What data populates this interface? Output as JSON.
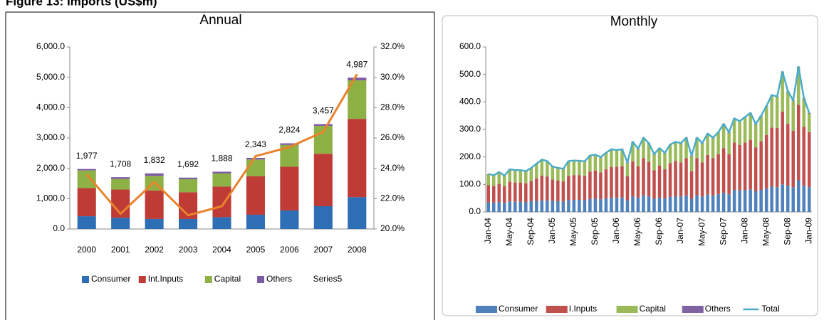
{
  "figure_title": "Figure 13: Imports (US$m)",
  "chart_data": [
    {
      "type": "bar",
      "stacked": true,
      "title": "Annual",
      "categories": [
        "2000",
        "2001",
        "2002",
        "2003",
        "2004",
        "2005",
        "2006",
        "2007",
        "2008"
      ],
      "series": [
        {
          "name": "Consumer",
          "color": "#2e6eb5",
          "type": "bar",
          "values": [
            420,
            370,
            330,
            330,
            390,
            470,
            610,
            750,
            1050
          ]
        },
        {
          "name": "Int.Inputs",
          "color": "#bf3b36",
          "type": "bar",
          "values": [
            930,
            930,
            940,
            880,
            1010,
            1270,
            1440,
            1730,
            2580
          ]
        },
        {
          "name": "Capital",
          "color": "#8db144",
          "type": "bar",
          "values": [
            580,
            350,
            480,
            430,
            430,
            550,
            720,
            920,
            1270
          ]
        },
        {
          "name": "Others",
          "color": "#7b5aa6",
          "type": "bar",
          "values": [
            47,
            58,
            82,
            52,
            58,
            53,
            54,
            57,
            87
          ]
        },
        {
          "name": "Series5",
          "color": "#e8822c",
          "type": "line",
          "axis": "y2",
          "values": [
            23.6,
            21.0,
            23.1,
            20.9,
            21.5,
            24.8,
            25.4,
            26.4,
            30.2
          ]
        }
      ],
      "data_labels": [
        "1,977",
        "1,708",
        "1,832",
        "1,692",
        "1,888",
        "2,343",
        "2,824",
        "3,457",
        "4,987"
      ],
      "ylim": [
        0,
        6000
      ],
      "yticks": [
        {
          "value": 0,
          "label": "0.0"
        },
        {
          "value": 1000,
          "label": "1,000.0"
        },
        {
          "value": 2000,
          "label": "2,000.0"
        },
        {
          "value": 3000,
          "label": "3,000.0"
        },
        {
          "value": 4000,
          "label": "4,000.0"
        },
        {
          "value": 5000,
          "label": "5,000.0"
        },
        {
          "value": 6000,
          "label": "6,000.0"
        }
      ],
      "y2lim": [
        20,
        32
      ],
      "y2ticks": [
        {
          "value": 20,
          "label": "20.0%"
        },
        {
          "value": 22,
          "label": "22.0%"
        },
        {
          "value": 24,
          "label": "24.0%"
        },
        {
          "value": 26,
          "label": "26.0%"
        },
        {
          "value": 28,
          "label": "28.0%"
        },
        {
          "value": 30,
          "label": "30.0%"
        },
        {
          "value": 32,
          "label": "32.0%"
        }
      ],
      "grid": false,
      "legend": "bottom",
      "legend_line_swatch": false,
      "rotate_x_labels": false
    },
    {
      "type": "bar",
      "stacked": true,
      "title": "Monthly",
      "categories": [
        "Jan-04",
        null,
        null,
        null,
        "May-04",
        null,
        null,
        null,
        "Sep-04",
        null,
        null,
        null,
        "Jan-05",
        null,
        null,
        null,
        "May-05",
        null,
        null,
        null,
        "Sep-05",
        null,
        null,
        null,
        "Jan-06",
        null,
        null,
        null,
        "May-06",
        null,
        null,
        null,
        "Sep-06",
        null,
        null,
        null,
        "Jan-07",
        null,
        null,
        null,
        "May-07",
        null,
        null,
        null,
        "Sep-07",
        null,
        null,
        null,
        "Jan-08",
        null,
        null,
        null,
        "May-08",
        null,
        null,
        null,
        "Sep-08",
        null,
        null,
        null,
        "Jan-09"
      ],
      "series": [
        {
          "name": "Consumer",
          "color": "#4f81bd",
          "type": "bar",
          "values": [
            35,
            34,
            36,
            33,
            38,
            37,
            37,
            36,
            39,
            40,
            42,
            41,
            40,
            39,
            38,
            43,
            44,
            44,
            43,
            47,
            48,
            46,
            49,
            51,
            52,
            52,
            42,
            56,
            52,
            60,
            56,
            48,
            52,
            49,
            55,
            57,
            56,
            60,
            48,
            60,
            56,
            63,
            60,
            64,
            70,
            64,
            80,
            78,
            80,
            82,
            75,
            80,
            85,
            92,
            90,
            100,
            95,
            90,
            115,
            95,
            90
          ]
        },
        {
          "name": "I.Inputs",
          "color": "#c0504d",
          "type": "bar",
          "values": [
            62,
            60,
            66,
            60,
            72,
            70,
            70,
            68,
            74,
            82,
            90,
            88,
            78,
            75,
            73,
            88,
            90,
            90,
            88,
            100,
            102,
            98,
            106,
            112,
            112,
            114,
            88,
            128,
            114,
            136,
            126,
            104,
            116,
            106,
            122,
            128,
            124,
            136,
            100,
            136,
            124,
            144,
            136,
            146,
            162,
            146,
            172,
            166,
            172,
            180,
            160,
            176,
            195,
            215,
            215,
            265,
            225,
            205,
            275,
            215,
            200
          ]
        },
        {
          "name": "Capital",
          "color": "#9bbb59",
          "type": "bar",
          "values": [
            39,
            37,
            41,
            37,
            43,
            43,
            43,
            42,
            45,
            51,
            56,
            54,
            45,
            44,
            44,
            52,
            51,
            50,
            51,
            56,
            56,
            54,
            58,
            63,
            59,
            60,
            48,
            69,
            62,
            72,
            66,
            56,
            62,
            58,
            66,
            68,
            68,
            72,
            55,
            72,
            68,
            76,
            72,
            78,
            86,
            78,
            86,
            84,
            91,
            96,
            83,
            92,
            103,
            116,
            113,
            143,
            118,
            108,
            136,
            103,
            68
          ]
        },
        {
          "name": "Others",
          "color": "#8064a2",
          "type": "bar",
          "values": [
            2,
            2,
            2,
            2,
            2,
            2,
            2,
            2,
            2,
            2,
            2,
            2,
            2,
            2,
            2,
            2,
            2,
            2,
            2,
            2,
            2,
            2,
            2,
            2,
            2,
            2,
            2,
            2,
            2,
            2,
            2,
            2,
            2,
            2,
            2,
            2,
            2,
            2,
            2,
            2,
            2,
            2,
            2,
            2,
            2,
            2,
            2,
            2,
            2,
            2,
            2,
            2,
            2,
            2,
            2,
            2,
            2,
            2,
            2,
            2,
            2
          ]
        },
        {
          "name": "Total",
          "color": "#4bacc6",
          "type": "line",
          "values": [
            138,
            133,
            145,
            132,
            155,
            152,
            152,
            148,
            160,
            175,
            190,
            185,
            165,
            160,
            157,
            185,
            187,
            186,
            184,
            205,
            208,
            200,
            215,
            228,
            225,
            228,
            180,
            255,
            230,
            270,
            250,
            210,
            232,
            215,
            245,
            255,
            250,
            270,
            205,
            270,
            250,
            285,
            270,
            290,
            320,
            290,
            340,
            330,
            345,
            360,
            320,
            350,
            385,
            425,
            420,
            510,
            440,
            405,
            528,
            415,
            360
          ]
        }
      ],
      "ylim": [
        0,
        600
      ],
      "yticks": [
        {
          "value": 0,
          "label": "0.0"
        },
        {
          "value": 100,
          "label": "100.0"
        },
        {
          "value": 200,
          "label": "200.0"
        },
        {
          "value": 300,
          "label": "300.0"
        },
        {
          "value": 400,
          "label": "400.0"
        },
        {
          "value": 500,
          "label": "500.0"
        },
        {
          "value": 600,
          "label": "600.0"
        }
      ],
      "grid": false,
      "legend": "bottom",
      "legend_line_swatch": true,
      "rotate_x_labels": true
    }
  ]
}
